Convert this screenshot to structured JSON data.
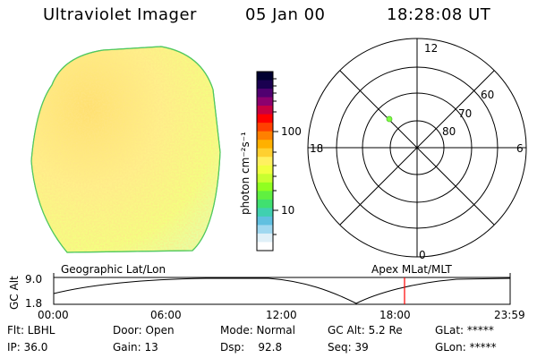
{
  "header": {
    "title": "Ultraviolet Imager",
    "date": "05 Jan 00",
    "time": "18:28:08 UT"
  },
  "colorbar": {
    "unit_label": "photon cm⁻²s⁻¹",
    "tick_100": "100",
    "tick_10": "10",
    "colors": [
      "#000030",
      "#1a0050",
      "#500070",
      "#8c006e",
      "#c80040",
      "#ff0000",
      "#ff4000",
      "#ff8000",
      "#ffb000",
      "#ffd030",
      "#fff060",
      "#f0ff40",
      "#c8ff30",
      "#90ff20",
      "#60f040",
      "#40e070",
      "#40d0b0",
      "#60c0e0",
      "#a0d8f0",
      "#e0f0f8",
      "#ffffff"
    ]
  },
  "polar_plot": {
    "label_top": "12",
    "label_left": "18",
    "label_right": "6",
    "label_bottom": "0",
    "ring_60": "60",
    "ring_70": "70",
    "ring_80": "80",
    "marker_color": "#80ff40"
  },
  "timeline": {
    "y_label": "GC Alt",
    "y_top": "9.0",
    "y_bottom": "1.8",
    "left_caption": "Geographic Lat/Lon",
    "right_caption": "Apex MLat/MLT",
    "ticks": [
      "00:00",
      "06:00",
      "12:00",
      "18:00",
      "23:59"
    ],
    "marker_color": "#ff0000"
  },
  "status": {
    "filter": "Flt: LBHL",
    "ip": "IP: 36.0",
    "door": "Door: Open",
    "gain": "Gain: 13",
    "mode": "Mode: Normal",
    "dsp": "Dsp:    92.8",
    "gc_alt": "GC Alt: 5.2 Re",
    "seq": "Seq: 39",
    "glat": "GLat: *****",
    "glon": "GLon: *****"
  }
}
